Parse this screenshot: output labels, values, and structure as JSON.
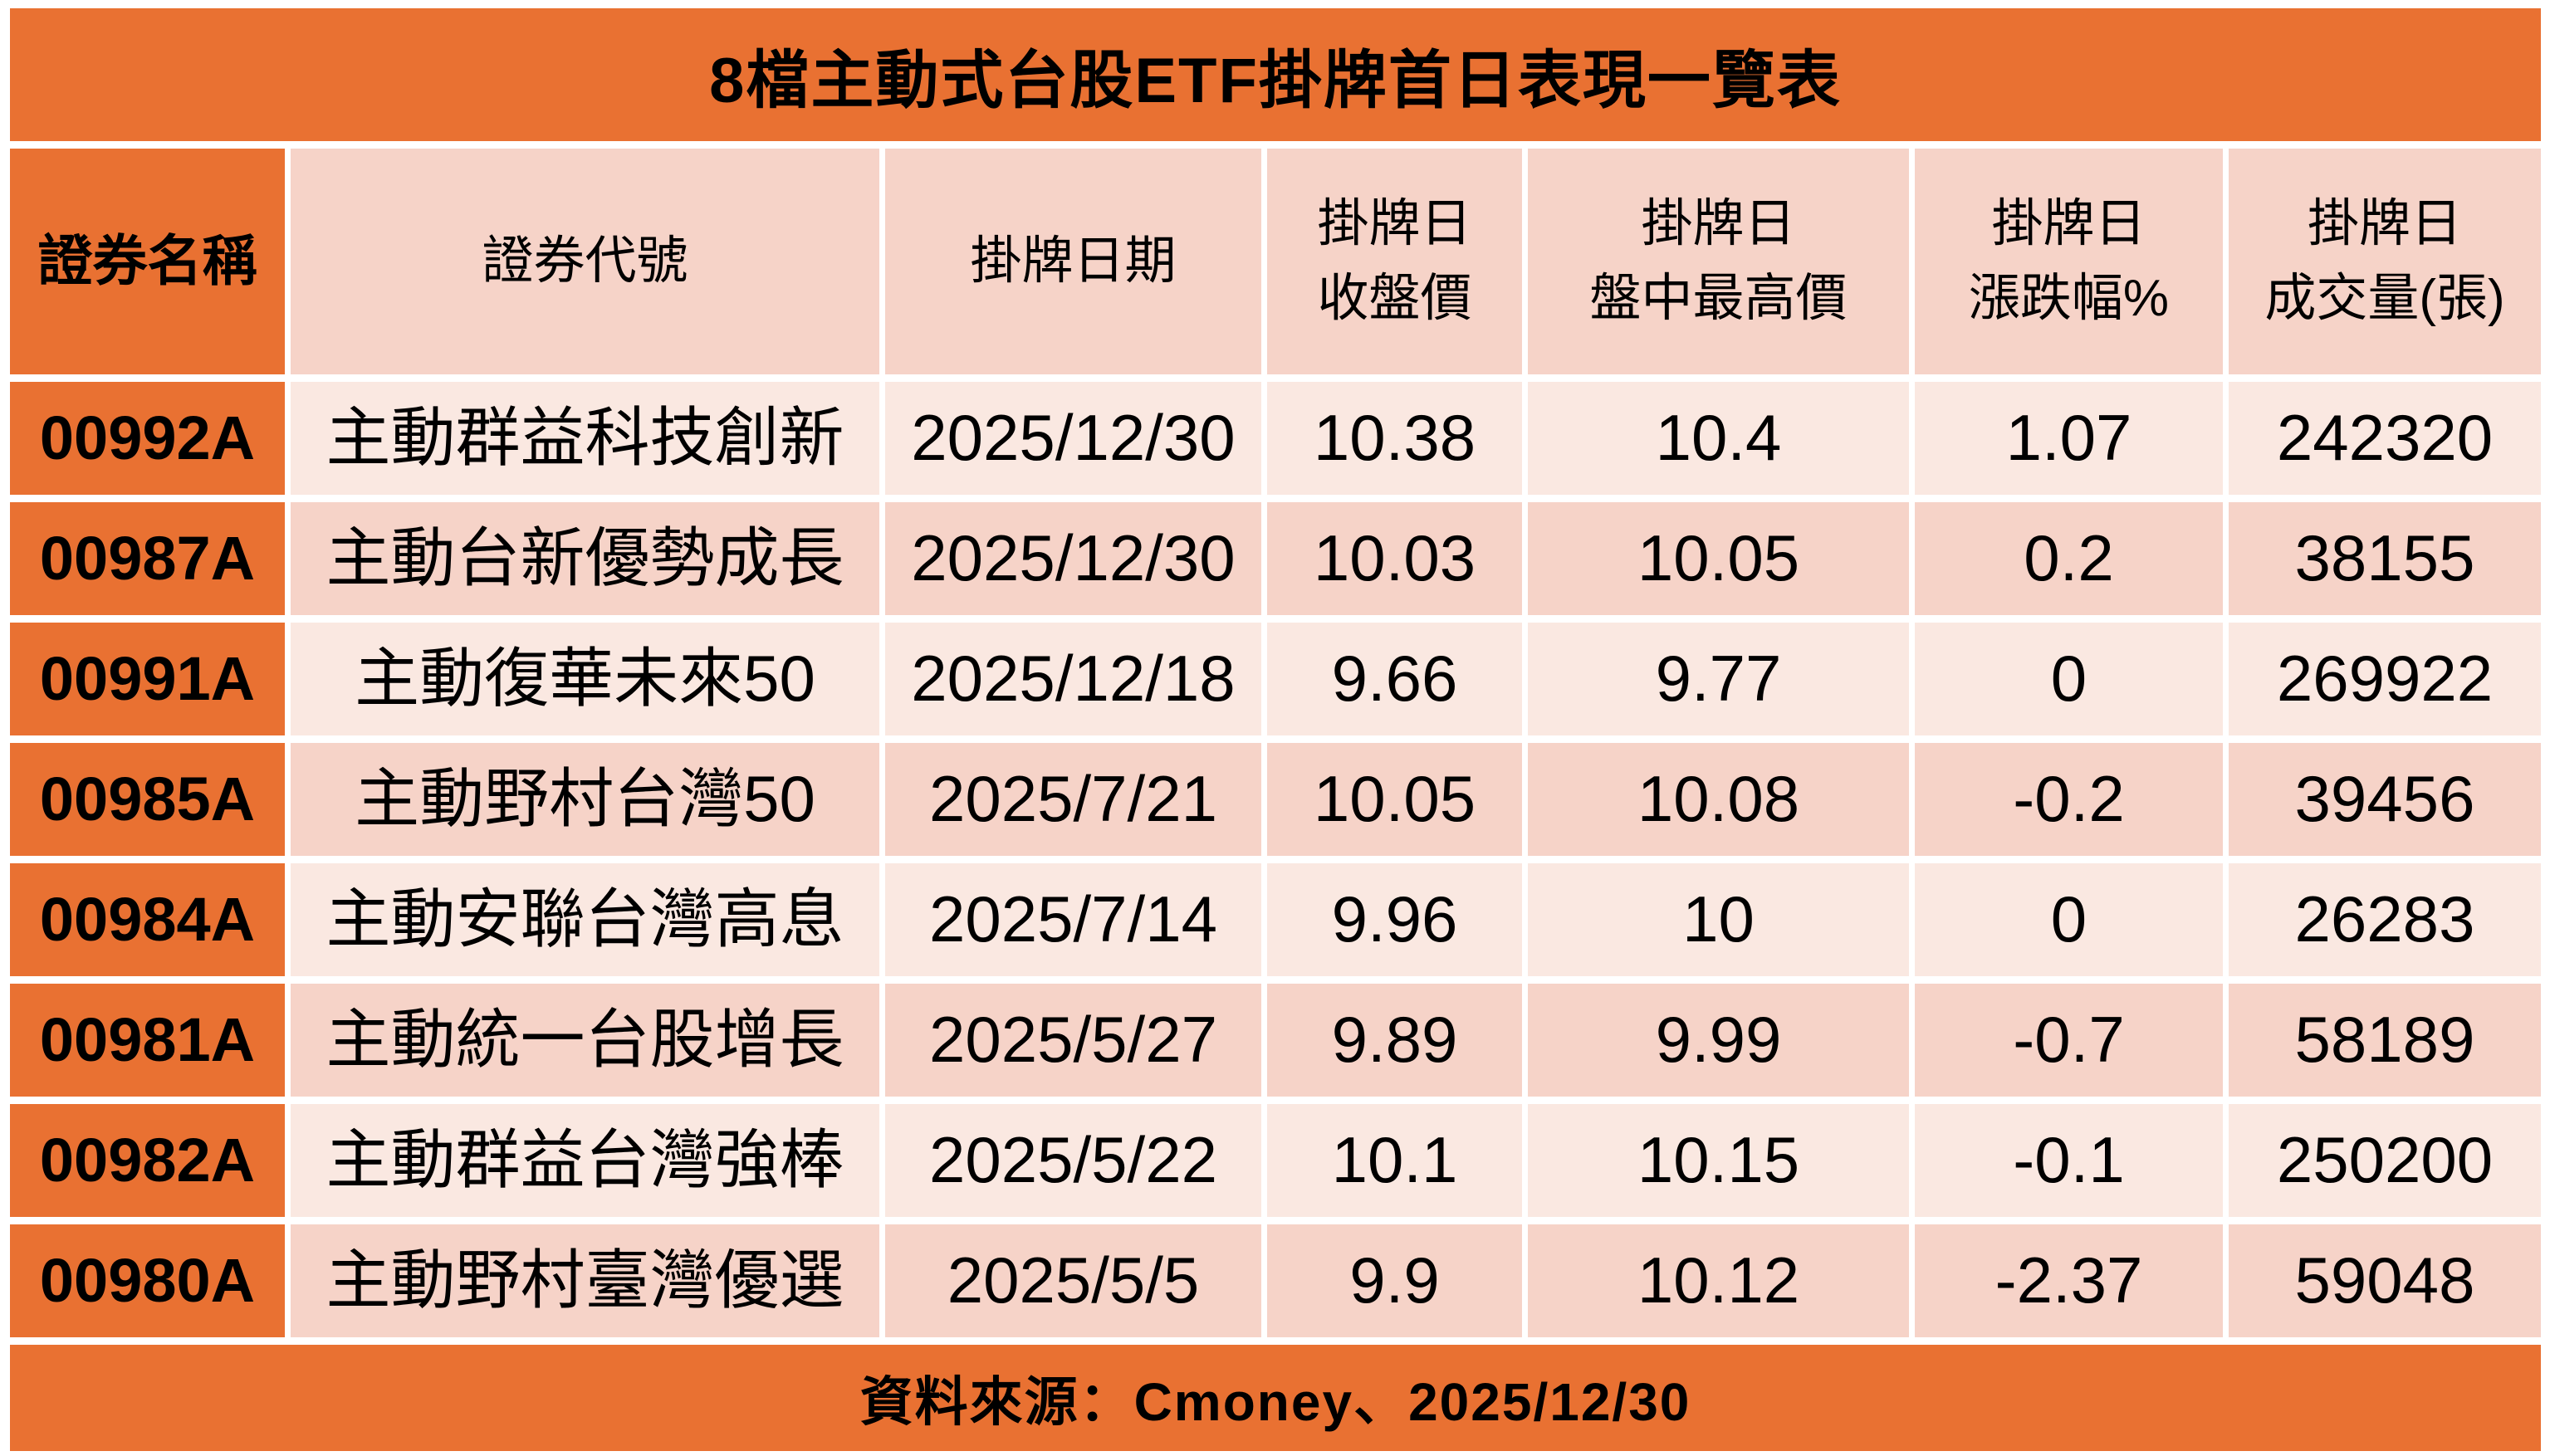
{
  "title": "8檔主動式台股ETF掛牌首日表現一覽表",
  "source_note": "資料來源：Cmoney、2025/12/30",
  "colors": {
    "orange": "#E97132",
    "row_light": "#FAE8E1",
    "row_dark": "#F6D3C8",
    "text": "#000000",
    "background": "#FFFFFF"
  },
  "table": {
    "headers": [
      "證券名稱",
      "證券代號",
      "掛牌日期",
      "掛牌日\n收盤價",
      "掛牌日\n盤中最高價",
      "掛牌日\n漲跌幅%",
      "掛牌日\n成交量(張)"
    ],
    "rows": [
      {
        "code": "00992A",
        "name": "主動群益科技創新",
        "date": "2025/12/30",
        "close": "10.38",
        "high": "10.4",
        "change": "1.07",
        "volume": "242320"
      },
      {
        "code": "00987A",
        "name": "主動台新優勢成長",
        "date": "2025/12/30",
        "close": "10.03",
        "high": "10.05",
        "change": "0.2",
        "volume": "38155"
      },
      {
        "code": "00991A",
        "name": "主動復華未來50",
        "date": "2025/12/18",
        "close": "9.66",
        "high": "9.77",
        "change": "0",
        "volume": "269922"
      },
      {
        "code": "00985A",
        "name": "主動野村台灣50",
        "date": "2025/7/21",
        "close": "10.05",
        "high": "10.08",
        "change": "-0.2",
        "volume": "39456"
      },
      {
        "code": "00984A",
        "name": "主動安聯台灣高息",
        "date": "2025/7/14",
        "close": "9.96",
        "high": "10",
        "change": "0",
        "volume": "26283"
      },
      {
        "code": "00981A",
        "name": "主動統一台股增長",
        "date": "2025/5/27",
        "close": "9.89",
        "high": "9.99",
        "change": "-0.7",
        "volume": "58189"
      },
      {
        "code": "00982A",
        "name": "主動群益台灣強棒",
        "date": "2025/5/22",
        "close": "10.1",
        "high": "10.15",
        "change": "-0.1",
        "volume": "250200"
      },
      {
        "code": "00980A",
        "name": "主動野村臺灣優選",
        "date": "2025/5/5",
        "close": "9.9",
        "high": "10.12",
        "change": "-2.37",
        "volume": "59048"
      }
    ]
  },
  "chart_data": {
    "type": "table",
    "title": "8檔主動式台股ETF掛牌首日表現一覽表",
    "columns": [
      "證券名稱",
      "證券代號",
      "掛牌日期",
      "掛牌日收盤價",
      "掛牌日盤中最高價",
      "掛牌日漲跌幅%",
      "掛牌日成交量(張)"
    ],
    "rows": [
      [
        "00992A",
        "主動群益科技創新",
        "2025/12/30",
        10.38,
        10.4,
        1.07,
        242320
      ],
      [
        "00987A",
        "主動台新優勢成長",
        "2025/12/30",
        10.03,
        10.05,
        0.2,
        38155
      ],
      [
        "00991A",
        "主動復華未來50",
        "2025/12/18",
        9.66,
        9.77,
        0,
        269922
      ],
      [
        "00985A",
        "主動野村台灣50",
        "2025/7/21",
        10.05,
        10.08,
        -0.2,
        39456
      ],
      [
        "00984A",
        "主動安聯台灣高息",
        "2025/7/14",
        9.96,
        10,
        0,
        26283
      ],
      [
        "00981A",
        "主動統一台股增長",
        "2025/5/27",
        9.89,
        9.99,
        -0.7,
        58189
      ],
      [
        "00982A",
        "主動群益台灣強棒",
        "2025/5/22",
        10.1,
        10.15,
        -0.1,
        250200
      ],
      [
        "00980A",
        "主動野村臺灣優選",
        "2025/5/5",
        9.9,
        10.12,
        -2.37,
        59048
      ]
    ],
    "source": "資料來源：Cmoney、2025/12/30",
    "layout": {
      "banded_rows": true,
      "first_column_highlight": true,
      "header_rows": 1
    }
  }
}
